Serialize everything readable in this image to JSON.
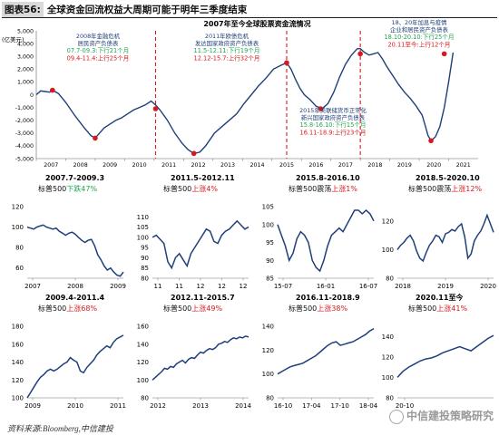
{
  "header": {
    "label": "图表56:",
    "title": "全球资金回流权益大周期可能于明年三季度结束"
  },
  "footer": {
    "source": "资料来源:Bloomberg,中信建投"
  },
  "watermark": "中信建投策略研究",
  "colors": {
    "line": "#1f3f7a",
    "red": "#d7191c",
    "green": "#22a650",
    "navy": "#1f3f7a"
  },
  "chart_data": [
    {
      "type": "line",
      "id": "main",
      "title": "2007年至今全球股票资金流情况",
      "ylabel": "(亿美元)",
      "ylim": [
        -5000,
        5000
      ],
      "yticks": [
        5000,
        4000,
        3000,
        2000,
        1000,
        0,
        -1000,
        -2000,
        -3000,
        -4000,
        -5000
      ],
      "xlim": [
        2007,
        2022
      ],
      "xticks": [
        "2007",
        "2008",
        "2009",
        "2010",
        "2011",
        "2012",
        "2013",
        "2014",
        "2015",
        "2016",
        "2017",
        "2018",
        "2019",
        "2020",
        "2021"
      ],
      "series": [
        {
          "x": [
            2007.0,
            2007.15,
            2007.3,
            2007.45,
            2007.55,
            2007.75,
            2008.0,
            2008.3,
            2008.6,
            2008.85,
            2009.0,
            2009.15,
            2009.3,
            2009.5,
            2009.7,
            2009.9,
            2010.1,
            2010.3,
            2010.5,
            2010.7,
            2010.9,
            2011.05,
            2011.2,
            2011.45,
            2011.7,
            2011.95,
            2012.15,
            2012.35,
            2012.55,
            2012.75,
            2012.9,
            2013.05,
            2013.3,
            2013.55,
            2013.8,
            2014.05,
            2014.3,
            2014.55,
            2014.8,
            2015.05,
            2015.3,
            2015.5,
            2015.65,
            2015.8,
            2015.95,
            2016.1,
            2016.3,
            2016.5,
            2016.7,
            2016.9,
            2017.1,
            2017.3,
            2017.5,
            2017.7,
            2017.9,
            2018.0,
            2018.15,
            2018.3,
            2018.45,
            2018.6,
            2018.75,
            2018.9,
            2019.1,
            2019.3,
            2019.5,
            2019.7,
            2019.9,
            2020.1,
            2020.2,
            2020.3,
            2020.4,
            2020.55,
            2020.7,
            2020.85,
            2021.0,
            2021.15
          ],
          "values": [
            0,
            300,
            250,
            200,
            350,
            100,
            -600,
            -1600,
            -2500,
            -3200,
            -3400,
            -3000,
            -2600,
            -2300,
            -2000,
            -1800,
            -1500,
            -1200,
            -1000,
            -800,
            -500,
            -800,
            -1200,
            -2000,
            -3000,
            -3800,
            -4300,
            -4600,
            -4500,
            -4000,
            -3500,
            -3000,
            -2500,
            -2000,
            -1500,
            -700,
            0,
            700,
            1300,
            2000,
            2300,
            2500,
            2000,
            1200,
            500,
            0,
            -400,
            -900,
            -1100,
            -700,
            200,
            1400,
            2400,
            3100,
            3600,
            3600,
            3300,
            3100,
            3200,
            3300,
            2800,
            2200,
            1500,
            800,
            200,
            -300,
            -900,
            -1600,
            -2400,
            -3200,
            -3600,
            -3300,
            -2500,
            -1000,
            1000,
            3300
          ]
        }
      ],
      "markers": [
        {
          "x": 2007.55,
          "y": 350
        },
        {
          "x": 2009.0,
          "y": -3400
        },
        {
          "x": 2011.05,
          "y": -1100
        },
        {
          "x": 2012.35,
          "y": -4600
        },
        {
          "x": 2015.5,
          "y": 2500
        },
        {
          "x": 2016.65,
          "y": -1100
        },
        {
          "x": 2018.0,
          "y": 3200
        },
        {
          "x": 2020.4,
          "y": -3600
        },
        {
          "x": 2020.85,
          "y": 3200
        }
      ],
      "vlines": [
        2011.05,
        2015.5,
        2018.0
      ],
      "annotations": [
        {
          "heading": [
            "2008年金融危机",
            "居民资产负债表"
          ],
          "lines": [
            {
              "text": "07.7-09.3:下行21个月",
              "color": "green"
            },
            {
              "text": "09.4-11.4:上行25个月",
              "color": "red"
            }
          ]
        },
        {
          "heading": [
            "2011年欧债危机",
            "发达国家政府资产负债表"
          ],
          "lines": [
            {
              "text": "11.5-12.11:下行19个月",
              "color": "green"
            },
            {
              "text": "12.12-15.7:上行32个月",
              "color": "red"
            }
          ]
        },
        {
          "heading": [
            "2015年美联储货币正常化",
            "新兴国家政府资产负债表"
          ],
          "lines": [
            {
              "text": "15.8-16.10:下行15个月",
              "color": "green"
            },
            {
              "text": "16.11-18.9:上行23个月",
              "color": "red"
            }
          ]
        },
        {
          "heading": [
            "18、20年加息与疫情",
            "企业和居民资产负债表"
          ],
          "lines": [
            {
              "text": "18.10-20.10:下行25个月",
              "color": "green"
            },
            {
              "text": "20.11至今:上行12个月",
              "color": "red"
            }
          ]
        }
      ]
    },
    {
      "type": "line",
      "id": "p1",
      "title": "2007.7-2009.3",
      "subtitle": [
        {
          "text": "标普500",
          "color": "black"
        },
        {
          "text": "下跌47%",
          "color": "green"
        }
      ],
      "ylim": [
        50,
        120
      ],
      "yticks": [
        120,
        100,
        80,
        60
      ],
      "xticks": [
        "2007",
        "2008",
        "2009"
      ],
      "values": [
        100,
        99,
        98,
        100,
        101,
        102,
        100,
        99,
        98,
        99,
        96,
        94,
        92,
        94,
        95,
        93,
        90,
        87,
        85,
        87,
        88,
        82,
        73,
        68,
        62,
        58,
        60,
        56,
        53,
        52,
        56
      ]
    },
    {
      "type": "line",
      "id": "p2",
      "title": "2011.5-2012.11",
      "subtitle": [
        {
          "text": "标普500",
          "color": "black"
        },
        {
          "text": "上涨4%",
          "color": "red"
        }
      ],
      "ylim": [
        80,
        115
      ],
      "yticks": [
        110,
        105,
        100,
        95,
        90,
        85,
        80
      ],
      "xticks": [
        "11",
        "11",
        "12",
        "12",
        "12"
      ],
      "values": [
        100,
        101,
        99,
        97,
        88,
        85,
        90,
        92,
        89,
        86,
        92,
        95,
        98,
        101,
        104,
        103,
        98,
        97,
        101,
        103,
        104,
        106,
        108,
        106,
        104,
        105
      ]
    },
    {
      "type": "line",
      "id": "p3",
      "title": "2015.8-2016.10",
      "subtitle": [
        {
          "text": "标普500震荡",
          "color": "black"
        },
        {
          "text": "上涨1%",
          "color": "red"
        }
      ],
      "ylim": [
        85,
        105
      ],
      "yticks": [
        105,
        100,
        95,
        90,
        85
      ],
      "xticks": [
        "15-07",
        "16-01",
        "16-07"
      ],
      "values": [
        100,
        97,
        94,
        90,
        92,
        96,
        98,
        97,
        95,
        90,
        88,
        87,
        90,
        94,
        97,
        98,
        99,
        98,
        100,
        102,
        104,
        104,
        103,
        104,
        103,
        101
      ]
    },
    {
      "type": "line",
      "id": "p4",
      "title": "2018.5-2020.10",
      "subtitle": [
        {
          "text": "标普500震荡",
          "color": "black"
        },
        {
          "text": "上涨12%",
          "color": "red"
        }
      ],
      "ylim": [
        80,
        130
      ],
      "yticks": [
        120,
        100,
        80
      ],
      "xticks": [
        "2018",
        "2019",
        "2020"
      ],
      "values": [
        100,
        103,
        105,
        108,
        110,
        106,
        99,
        94,
        92,
        98,
        103,
        106,
        110,
        109,
        105,
        111,
        112,
        114,
        113,
        116,
        118,
        109,
        94,
        97,
        106,
        110,
        113,
        118,
        124,
        118,
        112
      ]
    },
    {
      "type": "line",
      "id": "p5",
      "title": "2009.4-2011.4",
      "subtitle": [
        {
          "text": "标普500",
          "color": "black"
        },
        {
          "text": "上涨68%",
          "color": "red"
        }
      ],
      "ylim": [
        100,
        180
      ],
      "yticks": [
        180,
        160,
        140,
        120,
        100
      ],
      "xticks": [
        "2009",
        "2010",
        "2011"
      ],
      "values": [
        100,
        106,
        112,
        118,
        123,
        126,
        130,
        132,
        130,
        132,
        135,
        138,
        140,
        145,
        142,
        140,
        130,
        128,
        134,
        138,
        142,
        148,
        152,
        155,
        158,
        156,
        162,
        166,
        168,
        170
      ]
    },
    {
      "type": "line",
      "id": "p6",
      "title": "2012.11-2015.7",
      "subtitle": [
        {
          "text": "标普500",
          "color": "black"
        },
        {
          "text": "上涨49%",
          "color": "red"
        }
      ],
      "ylim": [
        80,
        160
      ],
      "yticks": [
        160,
        140,
        120,
        100,
        80
      ],
      "xticks": [
        "2012",
        "2013",
        "2014"
      ],
      "values": [
        100,
        103,
        106,
        109,
        113,
        112,
        115,
        114,
        118,
        120,
        122,
        119,
        123,
        125,
        124,
        128,
        131,
        130,
        133,
        135,
        134,
        136,
        140,
        141,
        143,
        142,
        145,
        147,
        146,
        148,
        147,
        149,
        148
      ]
    },
    {
      "type": "line",
      "id": "p7",
      "title": "2016.11-2018.9",
      "subtitle": [
        {
          "text": "标普500",
          "color": "black"
        },
        {
          "text": "上涨38%",
          "color": "red"
        }
      ],
      "ylim": [
        80,
        140
      ],
      "yticks": [
        140,
        120,
        100,
        80
      ],
      "xticks": [
        "16-10",
        "17-04",
        "17-10",
        "18-04"
      ],
      "values": [
        100,
        102,
        104,
        106,
        107,
        108,
        109,
        111,
        113,
        115,
        118,
        121,
        124,
        126,
        127,
        124,
        125,
        126,
        127,
        129,
        131,
        133,
        136,
        138
      ]
    },
    {
      "type": "line",
      "id": "p8",
      "title": "2020.11至今",
      "subtitle": [
        {
          "text": "标普500",
          "color": "black"
        },
        {
          "text": "上涨41%",
          "color": "red"
        }
      ],
      "ylim": [
        80,
        150
      ],
      "yticks": [
        140,
        120,
        100,
        80
      ],
      "xticks": [
        "20-10"
      ],
      "values": [
        100,
        106,
        110,
        113,
        116,
        118,
        119,
        121,
        124,
        126,
        128,
        130,
        128,
        126,
        130,
        134,
        138,
        141
      ]
    }
  ]
}
